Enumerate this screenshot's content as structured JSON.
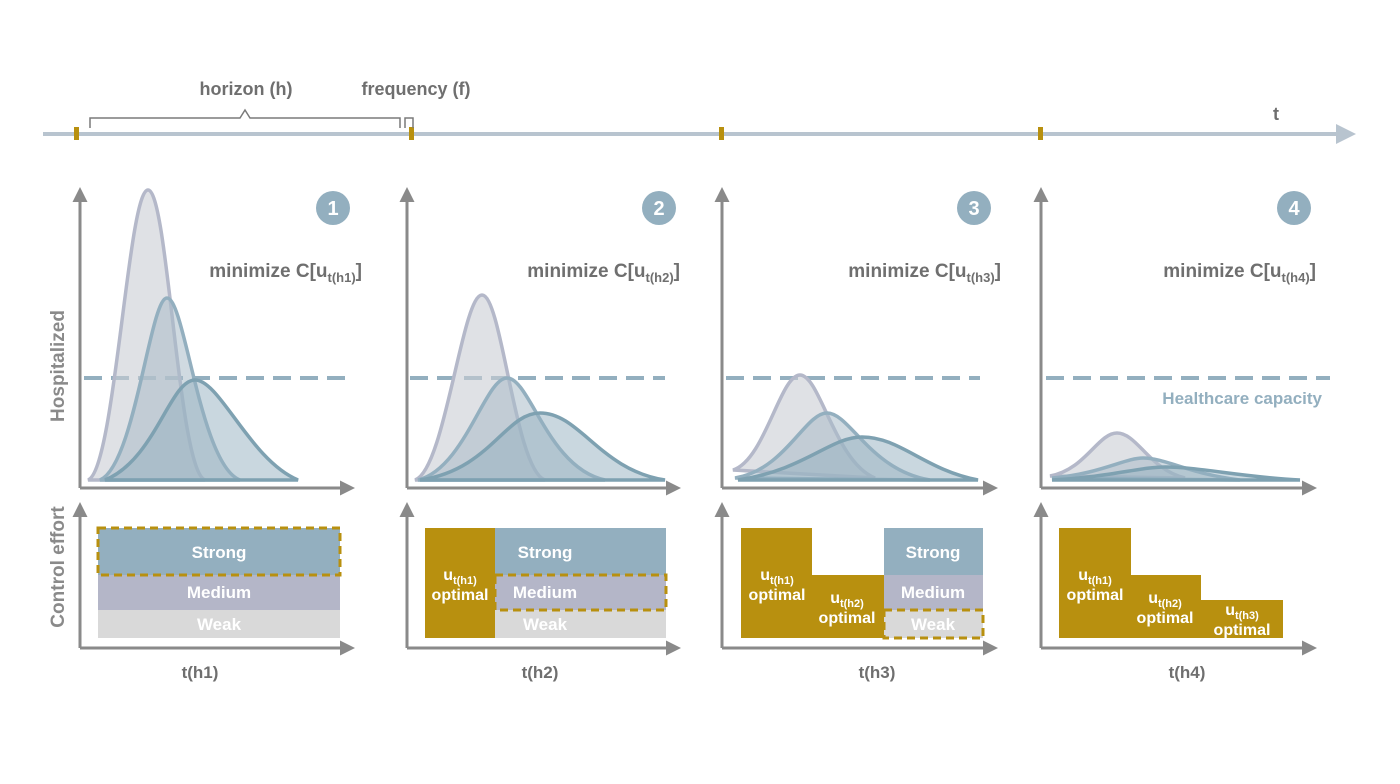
{
  "timeline": {
    "horizon_label": "horizon (h)",
    "frequency_label": "frequency (f)",
    "t_label": "t"
  },
  "axes": {
    "y_top": "Hospitalized",
    "y_bottom": "Control effort"
  },
  "capacity_label": "Healthcare capacity",
  "levels": {
    "strong": "Strong",
    "medium": "Medium",
    "weak": "Weak"
  },
  "optimal_word": "optimal",
  "panels": [
    {
      "number": "1",
      "minimize_prefix": "minimize C[u",
      "minimize_sub": "t(h1)",
      "minimize_suffix": "]",
      "xlabel": "t(h1)",
      "optimal_blocks": []
    },
    {
      "number": "2",
      "minimize_prefix": "minimize C[u",
      "minimize_sub": "t(h2)",
      "minimize_suffix": "]",
      "xlabel": "t(h2)",
      "optimal_blocks": [
        {
          "u": "u",
          "sub": "t(h1)"
        }
      ]
    },
    {
      "number": "3",
      "minimize_prefix": "minimize C[u",
      "minimize_sub": "t(h3)",
      "minimize_suffix": "]",
      "xlabel": "t(h3)",
      "optimal_blocks": [
        {
          "u": "u",
          "sub": "t(h1)"
        },
        {
          "u": "u",
          "sub": "t(h2)"
        }
      ]
    },
    {
      "number": "4",
      "minimize_prefix": "minimize C[u",
      "minimize_sub": "t(h4)",
      "minimize_suffix": "]",
      "xlabel": "t(h4)",
      "optimal_blocks": [
        {
          "u": "u",
          "sub": "t(h1)"
        },
        {
          "u": "u",
          "sub": "t(h2)"
        },
        {
          "u": "u",
          "sub": "t(h3)"
        }
      ]
    }
  ],
  "colors": {
    "gold": "#b8900f",
    "strong": "#93afbf",
    "medium": "#b4b6c8",
    "weak": "#d9d9d9",
    "axis": "#8a8a8a",
    "capacity": "#93afbf",
    "badge": "#93afbf"
  }
}
